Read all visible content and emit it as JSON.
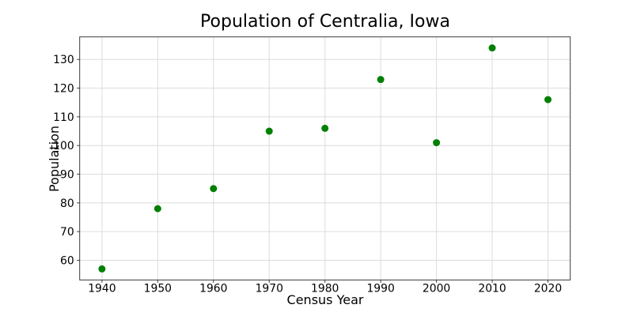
{
  "chart_data": {
    "type": "scatter",
    "title": "Population of Centralia, Iowa",
    "xlabel": "Census Year",
    "ylabel": "Population",
    "x": [
      1940,
      1950,
      1960,
      1970,
      1980,
      1990,
      2000,
      2010,
      2020
    ],
    "y": [
      57,
      78,
      85,
      105,
      106,
      123,
      101,
      134,
      116
    ],
    "xticks": [
      1940,
      1950,
      1960,
      1970,
      1980,
      1990,
      2000,
      2010,
      2020
    ],
    "yticks": [
      60,
      70,
      80,
      90,
      100,
      110,
      120,
      130
    ],
    "xlim": [
      1936,
      2024
    ],
    "ylim": [
      53.15,
      137.85
    ],
    "grid": true,
    "legend": false,
    "colors": {
      "marker": "#008000",
      "grid": "#dcdcdc",
      "spine": "#3a3a3a",
      "text": "#000000",
      "background": "#ffffff"
    }
  }
}
